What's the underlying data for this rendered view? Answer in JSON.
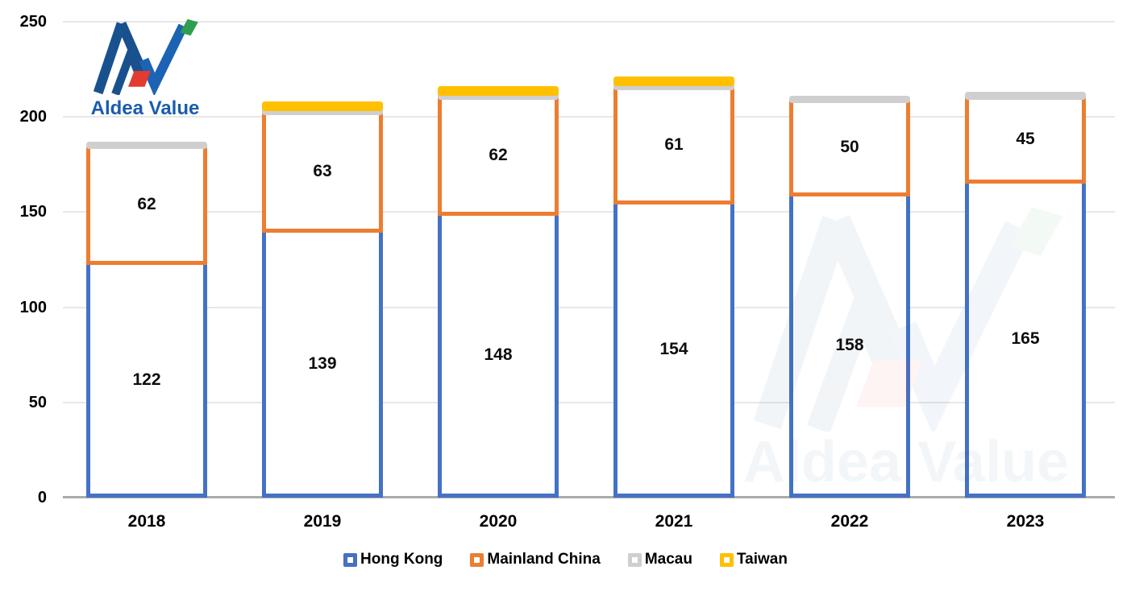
{
  "chart_data": {
    "type": "bar",
    "stacked": true,
    "categories": [
      "2018",
      "2019",
      "2020",
      "2021",
      "2022",
      "2023"
    ],
    "series": [
      {
        "name": "Hong Kong",
        "color": "#4472C4",
        "values": [
          122,
          139,
          148,
          154,
          158,
          165
        ]
      },
      {
        "name": "Mainland China",
        "color": "#ED7D31",
        "values": [
          62,
          63,
          62,
          61,
          50,
          45
        ]
      },
      {
        "name": "Macau",
        "color": "#D0CECE",
        "values": [
          2,
          2,
          2,
          2,
          2,
          2
        ]
      },
      {
        "name": "Taiwan",
        "color": "#FFC000",
        "values": [
          0,
          3,
          3,
          3,
          0,
          0
        ]
      }
    ],
    "ylim": [
      0,
      250
    ],
    "yticks": [
      0,
      50,
      100,
      150,
      200,
      250
    ],
    "grid": "horizontal",
    "legend_position": "bottom",
    "bar_style": "white-fill-colored-border",
    "label_min_value": 20,
    "xlabel": "",
    "ylabel": "",
    "title": ""
  },
  "branding": {
    "logo_text": "Aldea Value",
    "watermark_text": "Aldea Value"
  },
  "colors": {
    "hong_kong": "#4472C4",
    "mainland_china": "#ED7D31",
    "macau": "#D0CECE",
    "taiwan": "#FFC000",
    "gridline": "#E7E7E7",
    "axis_line": "#ABABAB",
    "logo_navy": "#19518F",
    "logo_blue": "#1D63B5",
    "logo_green": "#2F9E50",
    "logo_red": "#E23B30",
    "logo_text_blue": "#1A5CAD"
  }
}
